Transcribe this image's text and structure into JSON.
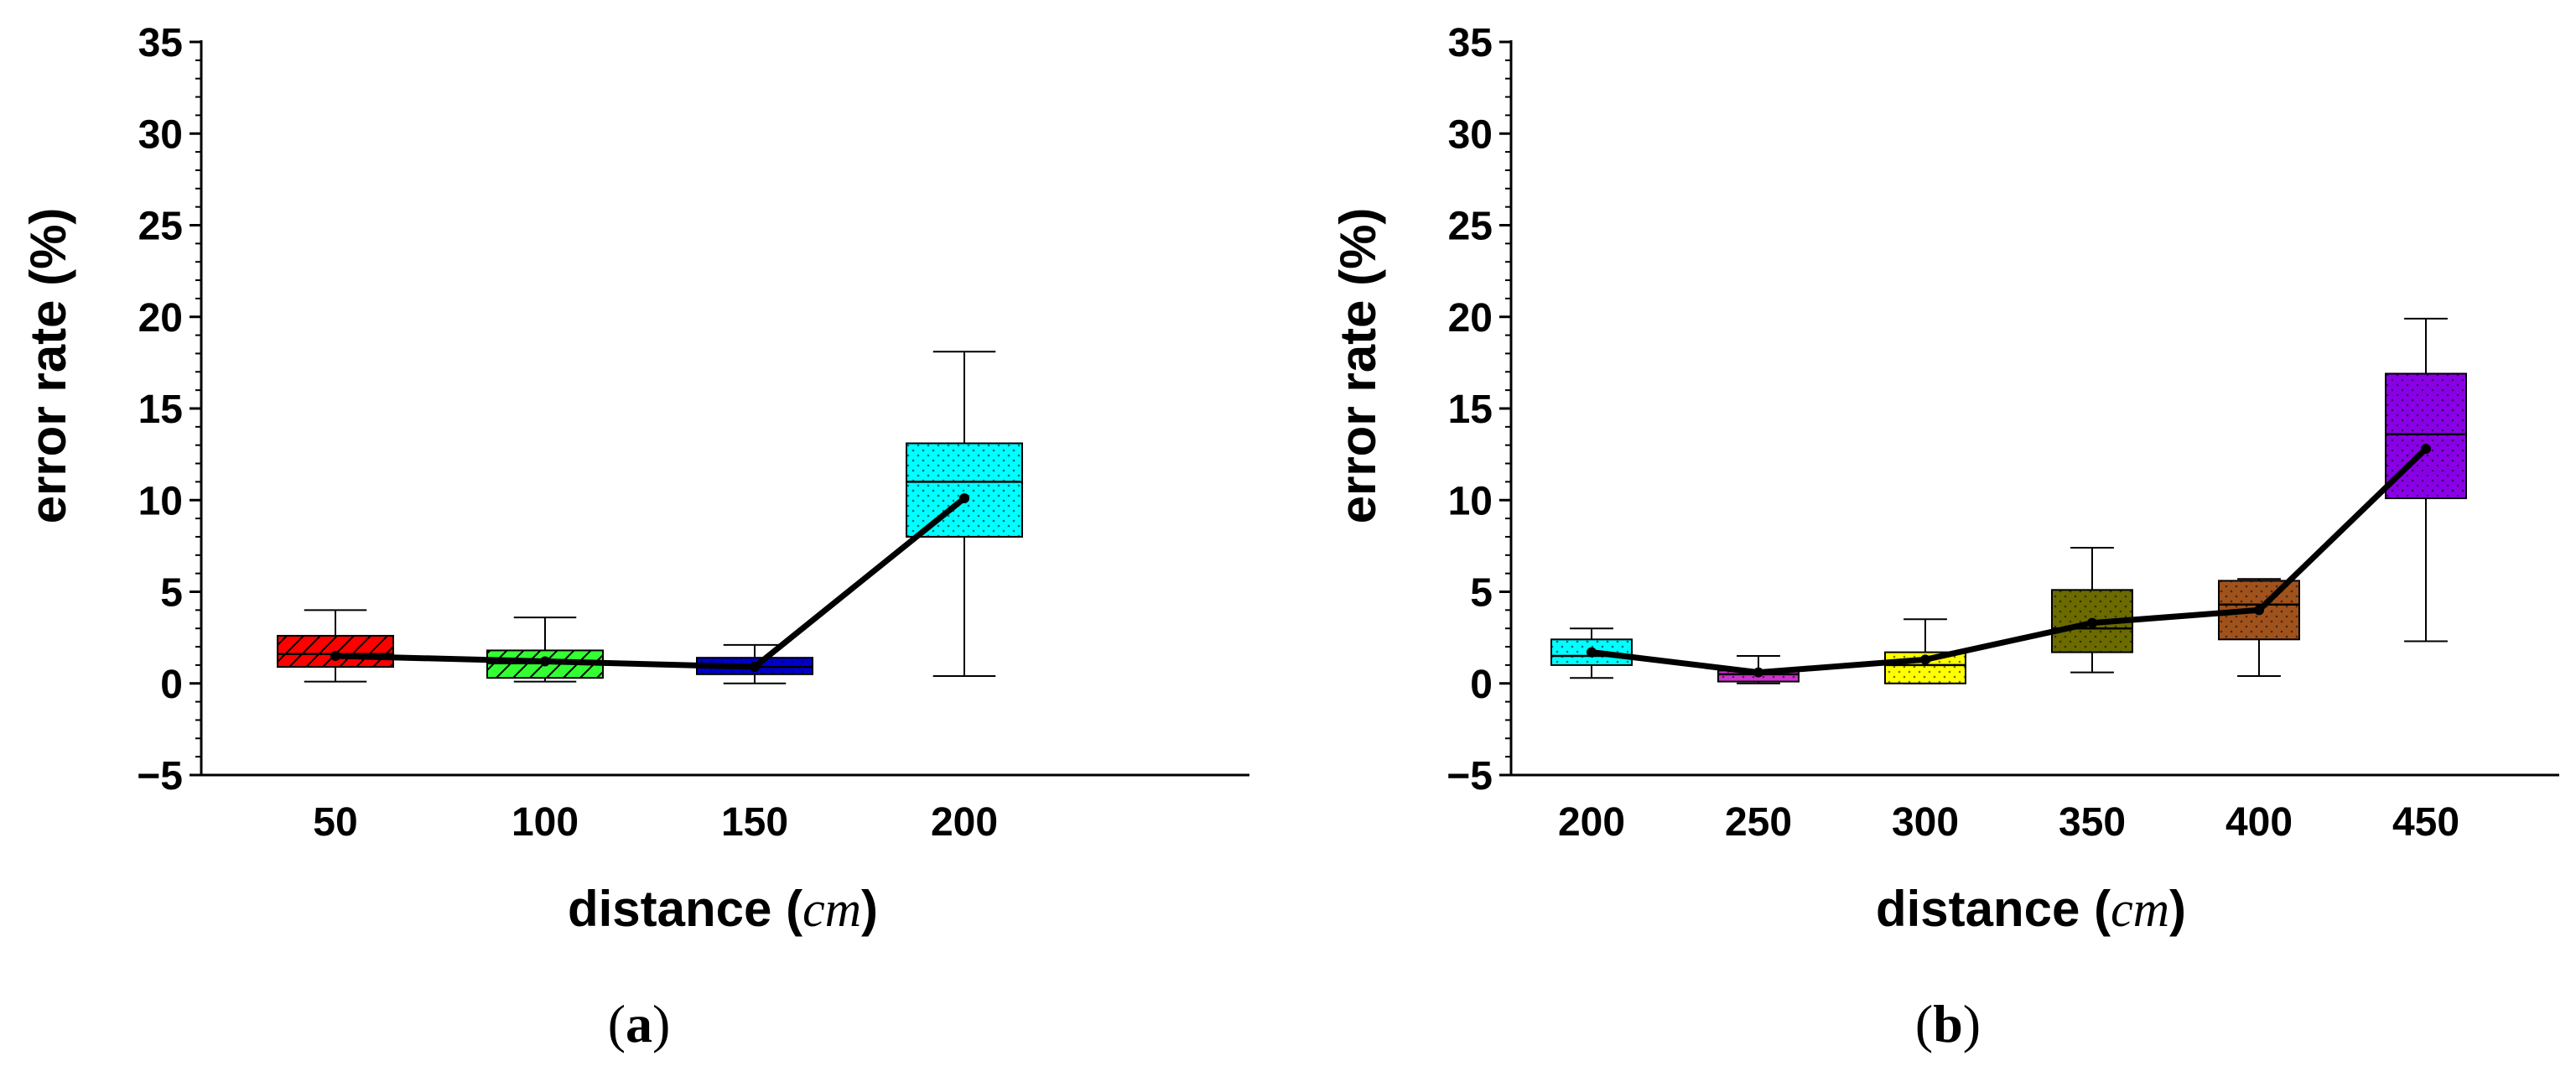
{
  "chart_data": [
    {
      "type": "box",
      "panel_label": "a",
      "xlabel": "distance",
      "xlabel_unit": "cm",
      "ylabel": "error rate (%)",
      "ylim": [
        -5,
        35
      ],
      "yticks": [
        -5,
        0,
        5,
        10,
        15,
        20,
        25,
        30,
        35
      ],
      "categories": [
        "50",
        "100",
        "150",
        "200"
      ],
      "boxes": [
        {
          "category": "50",
          "whisker_low": 0.1,
          "q1": 0.9,
          "median": 1.6,
          "q3": 2.6,
          "whisker_high": 4.0,
          "mean": 1.5,
          "color": "#ff0000",
          "pattern": "diagonal-hatch"
        },
        {
          "category": "100",
          "whisker_low": 0.1,
          "q1": 0.3,
          "median": 1.1,
          "q3": 1.8,
          "whisker_high": 3.6,
          "mean": 1.2,
          "color": "#33ff33",
          "pattern": "diagonal-hatch"
        },
        {
          "category": "150",
          "whisker_low": 0.0,
          "q1": 0.5,
          "median": 0.9,
          "q3": 1.4,
          "whisker_high": 2.1,
          "mean": 0.9,
          "color": "#0000cc",
          "pattern": "dots"
        },
        {
          "category": "200",
          "whisker_low": 0.4,
          "q1": 8.0,
          "median": 11.0,
          "q3": 13.1,
          "whisker_high": 18.1,
          "mean": 10.1,
          "color": "#00ffff",
          "pattern": "dots"
        }
      ],
      "mean_line_color": "#000000"
    },
    {
      "type": "box",
      "panel_label": "b",
      "xlabel": "distance",
      "xlabel_unit": "cm",
      "ylabel": "error rate (%)",
      "ylim": [
        -5,
        35
      ],
      "yticks": [
        -5,
        0,
        5,
        10,
        15,
        20,
        25,
        30,
        35
      ],
      "categories": [
        "200",
        "250",
        "300",
        "350",
        "400",
        "450"
      ],
      "boxes": [
        {
          "category": "200",
          "whisker_low": 0.3,
          "q1": 1.0,
          "median": 1.5,
          "q3": 2.4,
          "whisker_high": 3.0,
          "mean": 1.7,
          "color": "#00ffff",
          "pattern": "dots"
        },
        {
          "category": "250",
          "whisker_low": 0.0,
          "q1": 0.1,
          "median": 0.5,
          "q3": 0.7,
          "whisker_high": 1.5,
          "mean": 0.6,
          "color": "#cc33cc",
          "pattern": "dots"
        },
        {
          "category": "300",
          "whisker_low": 0.0,
          "q1": 0.0,
          "median": 1.0,
          "q3": 1.7,
          "whisker_high": 3.5,
          "mean": 1.3,
          "color": "#ffff00",
          "pattern": "dots"
        },
        {
          "category": "350",
          "whisker_low": 0.6,
          "q1": 1.7,
          "median": 3.0,
          "q3": 5.1,
          "whisker_high": 7.4,
          "mean": 3.3,
          "color": "#6b6b00",
          "pattern": "dots"
        },
        {
          "category": "400",
          "whisker_low": 0.4,
          "q1": 2.4,
          "median": 4.3,
          "q3": 5.6,
          "whisker_high": 5.7,
          "mean": 4.0,
          "color": "#a0521d",
          "pattern": "dots"
        },
        {
          "category": "450",
          "whisker_low": 2.3,
          "q1": 10.1,
          "median": 13.6,
          "q3": 16.9,
          "whisker_high": 19.9,
          "mean": 12.8,
          "color": "#8a00e6",
          "pattern": "dots"
        }
      ],
      "mean_line_color": "#000000"
    }
  ]
}
